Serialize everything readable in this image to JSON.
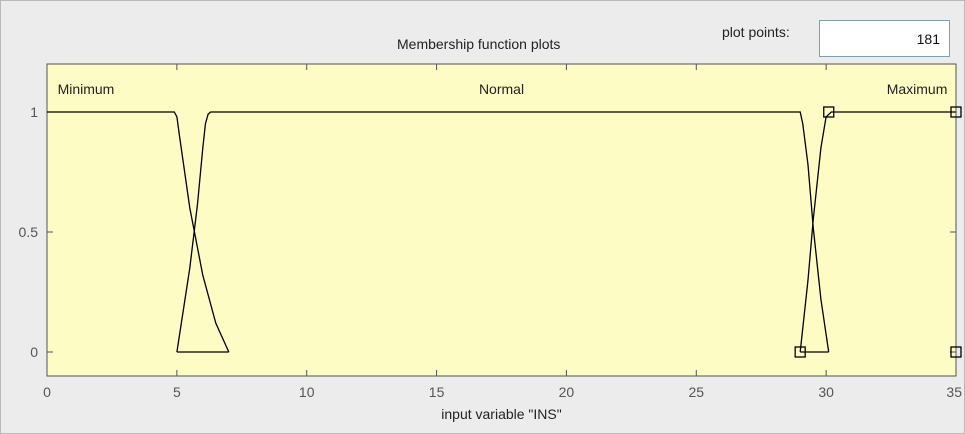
{
  "panel": {
    "title": "Membership function plots",
    "plot_points_label": "plot points:",
    "plot_points_value": "181"
  },
  "colors": {
    "plot_background": "#fdfcc5",
    "curve": "#000000",
    "axis": "#555555"
  },
  "chart_data": {
    "type": "line",
    "title": "Membership function plots",
    "xlabel": "input variable \"INS\"",
    "ylabel": "",
    "xlim": [
      0,
      35
    ],
    "ylim": [
      -0.1,
      1.2
    ],
    "x_ticks": [
      0,
      5,
      10,
      15,
      20,
      25,
      30,
      35
    ],
    "x_tick_labels": [
      "0",
      "5",
      "10",
      "15",
      "20",
      "25",
      "30",
      "35"
    ],
    "y_ticks": [
      0,
      0.5,
      1
    ],
    "y_tick_labels": [
      "0",
      "0.5",
      "1"
    ],
    "grid": false,
    "series": [
      {
        "name": "Minimum",
        "label_x": 1.5,
        "x": [
          0,
          4.9,
          5.0,
          5.1,
          5.5,
          6.0,
          6.5,
          7.0
        ],
        "values": [
          1,
          1,
          0.98,
          0.9,
          0.6,
          0.32,
          0.12,
          0
        ]
      },
      {
        "name": "Normal",
        "label_x": 17.5,
        "x": [
          5.0,
          5.5,
          5.8,
          6.0,
          6.1,
          6.2,
          6.3,
          29.0,
          29.1,
          29.3,
          29.5,
          29.8,
          30.1
        ],
        "values": [
          0,
          0.35,
          0.62,
          0.85,
          0.95,
          0.99,
          1,
          1,
          0.95,
          0.78,
          0.52,
          0.22,
          0
        ]
      },
      {
        "name": "Maximum",
        "label_x": 33.5,
        "x": [
          29.0,
          29.3,
          29.5,
          29.8,
          30.0,
          30.2,
          35
        ],
        "values": [
          0,
          0.3,
          0.55,
          0.85,
          0.98,
          1,
          1
        ],
        "markers_x": [
          30.1,
          35.0,
          29.0,
          35.0
        ],
        "markers_y": [
          1,
          1,
          0,
          0
        ]
      }
    ],
    "baseline_segments": [
      {
        "x": [
          5.0,
          7.0
        ],
        "values": [
          0,
          0
        ]
      },
      {
        "x": [
          29.0,
          30.1
        ],
        "values": [
          0,
          0
        ]
      }
    ]
  }
}
